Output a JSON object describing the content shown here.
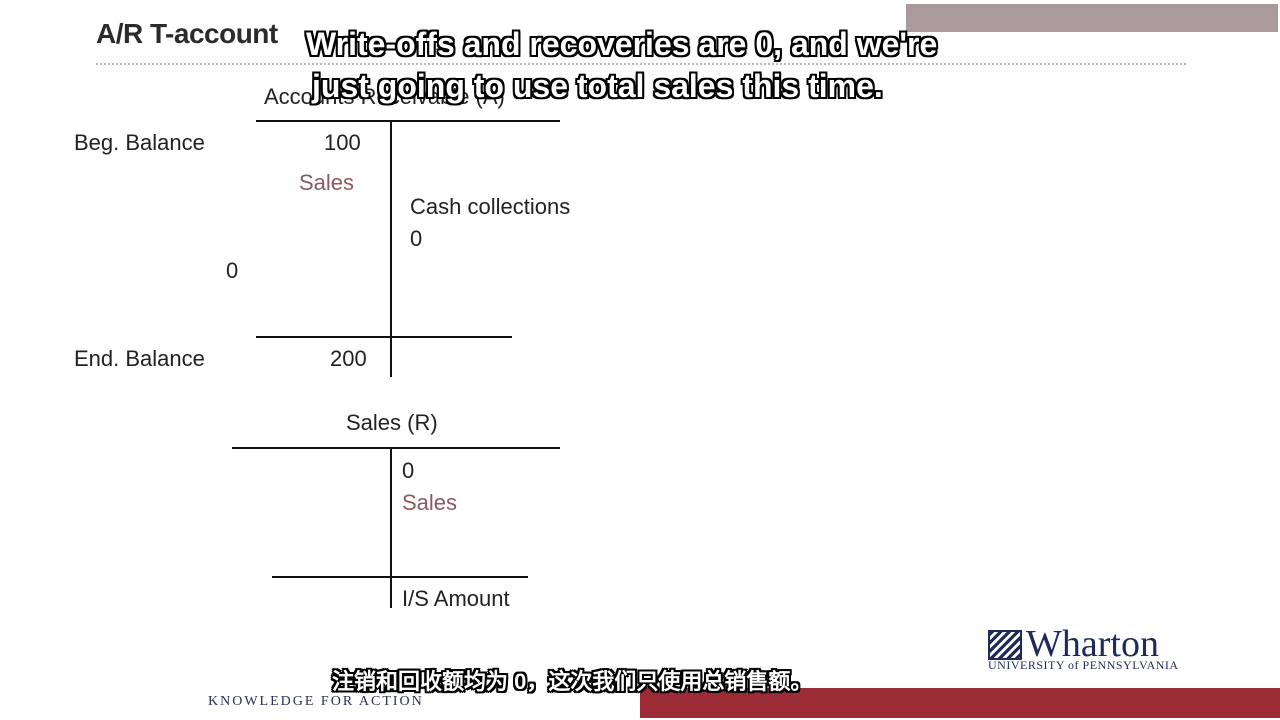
{
  "slide": {
    "title": "A/R T-account",
    "accounts_receivable": {
      "header": "Accounts Receivable (A)",
      "beg_label": "Beg. Balance",
      "beg_value": "100",
      "sales_label": "Sales",
      "cash_label": "Cash collections",
      "cash_value": "0",
      "left_zero": "0",
      "end_label": "End. Balance",
      "end_value": "200"
    },
    "sales_account": {
      "header": "Sales (R)",
      "value": "0",
      "sales_label": "Sales",
      "is_label": "I/S Amount"
    }
  },
  "subtitles": {
    "english_line1": "Write-offs and recoveries are 0, and we're",
    "english_line2": "just going to use total sales this time.",
    "chinese": "注销和回收额均为 0，这次我们只使用总销售额。"
  },
  "footer": {
    "tagline": "KNOWLEDGE FOR ACTION",
    "logo_word": "Wharton",
    "logo_sub": "UNIVERSITY of PENNSYLVANIA"
  },
  "colors": {
    "accent_red": "#9b2c35",
    "sales_text": "#8b5a5c",
    "brand_navy": "#1d2a5a"
  }
}
